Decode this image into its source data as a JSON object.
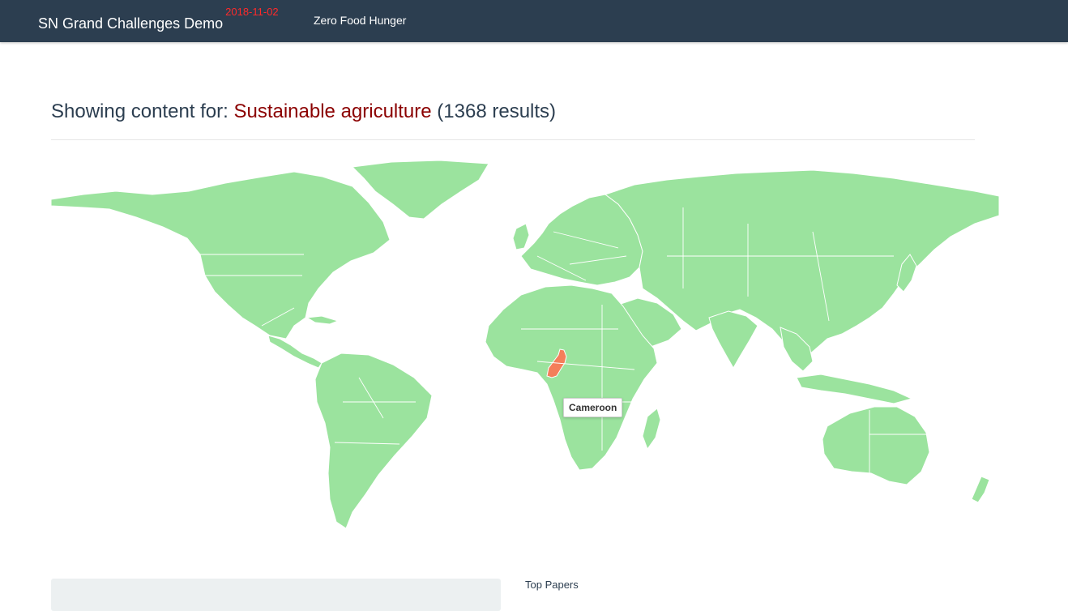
{
  "navbar": {
    "brand_title": "SN Grand Challenges Demo",
    "brand_date": "2018-11-02",
    "link_label": "Zero Food Hunger",
    "background": "#2c3e50"
  },
  "heading": {
    "prefix": "Showing content for: ",
    "topic": "Sustainable agriculture",
    "results": "(1368 results)",
    "topic_color": "#8b0000"
  },
  "map": {
    "land_color": "#9be39e",
    "highlight_color": "#f47e5a",
    "highlighted_country": "Cameroon",
    "tooltip_text": "Cameroon"
  },
  "bottom": {
    "top_papers_label": "Top Papers"
  }
}
